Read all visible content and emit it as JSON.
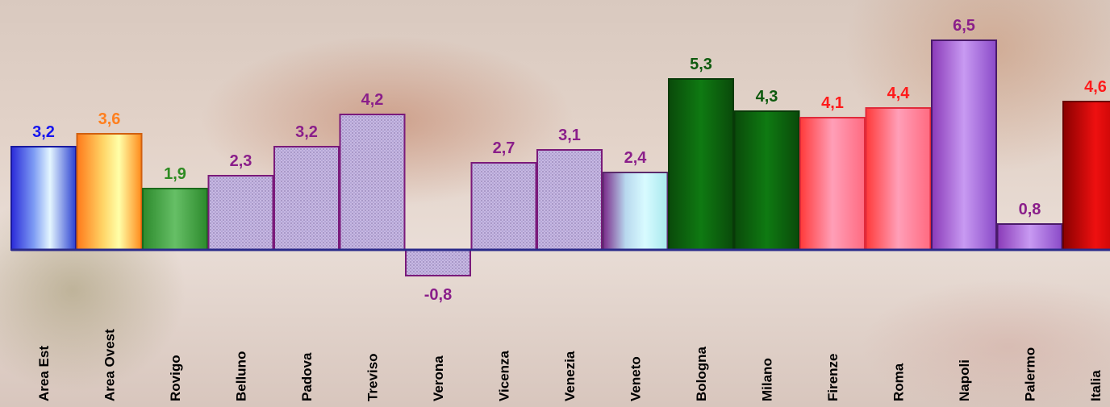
{
  "chart_data": {
    "type": "bar",
    "categories": [
      "Area Est",
      "Area Ovest",
      "Rovigo",
      "Belluno",
      "Padova",
      "Treviso",
      "Verona",
      "Vicenza",
      "Venezia",
      "Veneto",
      "Bologna",
      "Milano",
      "Firenze",
      "Roma",
      "Napoli",
      "Palermo",
      "Italia"
    ],
    "values": [
      3.2,
      3.6,
      1.9,
      2.3,
      3.2,
      4.2,
      -0.8,
      2.7,
      3.1,
      2.4,
      5.3,
      4.3,
      4.1,
      4.4,
      6.5,
      0.8,
      4.6
    ],
    "value_labels": [
      "3,2",
      "3,6",
      "1,9",
      "2,3",
      "3,2",
      "4,2",
      "-0,8",
      "2,7",
      "3,1",
      "2,4",
      "5,3",
      "4,3",
      "4,1",
      "4,4",
      "6,5",
      "0,8",
      "4,6"
    ],
    "label_colors": [
      "#1515ee",
      "#ff7f1e",
      "#2e8b22",
      "#8a1e8a",
      "#8a1e8a",
      "#8a1e8a",
      "#8a1e8a",
      "#8a1e8a",
      "#8a1e8a",
      "#8a1e8a",
      "#0e5a0e",
      "#0e5a0e",
      "#ff1a1a",
      "#ff1a1a",
      "#8a1e8a",
      "#8a1e8a",
      "#ff1a1a"
    ],
    "bar_styles": [
      "blue",
      "orange",
      "green",
      "hatch",
      "hatch",
      "hatch",
      "hatch",
      "hatch",
      "hatch",
      "cyan",
      "darkgreen",
      "darkgreen",
      "pink",
      "pink",
      "violet",
      "violet",
      "red"
    ],
    "ylim": [
      -0.8,
      6.5
    ],
    "grid": false,
    "title": "",
    "xlabel": "",
    "ylabel": ""
  }
}
